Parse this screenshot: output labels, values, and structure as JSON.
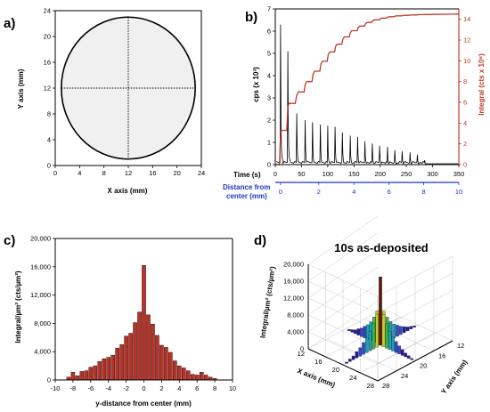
{
  "panels": {
    "a": "a)",
    "b": "b)",
    "c": "c)",
    "d": "d)"
  },
  "chart_data": [
    {
      "panel": "a",
      "type": "diagram",
      "xlabel": "X axis (mm)",
      "ylabel": "Y axis (mm)",
      "xlim": [
        0,
        24
      ],
      "ylim": [
        0,
        24
      ],
      "xticks": [
        0,
        4,
        8,
        12,
        16,
        20,
        24
      ],
      "yticks": [
        0,
        4,
        8,
        12,
        16,
        20,
        24
      ],
      "circle": {
        "cx": 12,
        "cy": 12,
        "r": 11,
        "fill": "#f0f0f0"
      },
      "crosshair": {
        "x": 12,
        "y": 12
      }
    },
    {
      "panel": "b",
      "type": "line",
      "xlabel": "Time (s)",
      "ylabel": "cps (x 10³)",
      "y2label": "Integral (cts x 10⁶)",
      "xlim": [
        0,
        350
      ],
      "ylim": [
        0,
        7
      ],
      "y2lim": [
        0,
        15
      ],
      "xticks": [
        0,
        50,
        100,
        150,
        200,
        250,
        300,
        350
      ],
      "yticks": [
        0,
        1,
        2,
        3,
        4,
        5,
        6,
        7
      ],
      "y2ticks": [
        0,
        2,
        4,
        6,
        8,
        10,
        12,
        14
      ],
      "secondary_axis": {
        "label_line1": "Distance from",
        "label_line2": "center (mm)",
        "ticks": [
          0,
          2,
          4,
          6,
          8,
          10
        ],
        "tick_times": [
          10,
          83,
          150,
          217,
          283,
          350
        ]
      },
      "series": [
        {
          "name": "cps",
          "color": "#000000",
          "peaks": [
            [
              10,
              6.3
            ],
            [
              24,
              5.1
            ],
            [
              41,
              2.3
            ],
            [
              57,
              2.0
            ],
            [
              71,
              1.9
            ],
            [
              86,
              1.8
            ],
            [
              100,
              1.75
            ],
            [
              114,
              1.7
            ],
            [
              128,
              1.45
            ],
            [
              143,
              1.3
            ],
            [
              157,
              1.25
            ],
            [
              171,
              1.05
            ],
            [
              185,
              0.95
            ],
            [
              199,
              0.85
            ],
            [
              214,
              0.8
            ],
            [
              228,
              0.65
            ],
            [
              242,
              0.6
            ],
            [
              257,
              0.55
            ],
            [
              271,
              0.45
            ],
            [
              285,
              0.2
            ]
          ]
        },
        {
          "name": "Integral",
          "color": "#c0392b",
          "x": [
            0,
            8,
            10,
            12,
            22,
            24,
            26,
            38,
            41,
            44,
            55,
            57,
            60,
            70,
            72,
            75,
            85,
            87,
            90,
            99,
            101,
            104,
            113,
            115,
            118,
            127,
            129,
            132,
            141,
            143,
            146,
            156,
            158,
            161,
            170,
            172,
            175,
            184,
            186,
            189,
            198,
            200,
            203,
            212,
            214,
            217,
            226,
            228,
            231,
            241,
            243,
            246,
            255,
            257,
            260,
            269,
            271,
            274,
            284,
            286,
            300,
            350
          ],
          "y": [
            0,
            0,
            2.9,
            3.3,
            3.3,
            5.5,
            5.9,
            5.9,
            6.7,
            7.0,
            7.0,
            7.7,
            8.0,
            8.0,
            8.7,
            9.0,
            9.0,
            9.7,
            9.95,
            9.95,
            10.6,
            10.85,
            10.85,
            11.4,
            11.6,
            11.6,
            12.1,
            12.3,
            12.3,
            12.7,
            12.9,
            12.9,
            13.2,
            13.35,
            13.35,
            13.55,
            13.7,
            13.7,
            13.85,
            13.95,
            13.95,
            14.05,
            14.12,
            14.12,
            14.2,
            14.25,
            14.25,
            14.3,
            14.33,
            14.33,
            14.36,
            14.38,
            14.38,
            14.4,
            14.42,
            14.42,
            14.43,
            14.45,
            14.45,
            14.46,
            14.47,
            14.5
          ]
        }
      ]
    },
    {
      "panel": "c",
      "type": "bar",
      "xlabel": "y-distance from center (mm)",
      "ylabel": "Integral/µm² (cts/µm²)",
      "xlim": [
        -10,
        10
      ],
      "ylim": [
        0,
        20000
      ],
      "xticks": [
        -10,
        -8,
        -6,
        -4,
        -2,
        0,
        2,
        4,
        6,
        8,
        10
      ],
      "yticks": [
        0,
        4000,
        8000,
        12000,
        16000,
        20000
      ],
      "ytick_labels": [
        "0",
        "4,000",
        "8,000",
        "12,000",
        "16,000",
        "20,000"
      ],
      "x": [
        -8.5,
        -8,
        -7.5,
        -7,
        -6.5,
        -6,
        -5.5,
        -5,
        -4.5,
        -4,
        -3.5,
        -3,
        -2.5,
        -2,
        -1.5,
        -1,
        -0.5,
        0,
        0.5,
        1,
        1.5,
        2,
        2.5,
        3,
        3.5,
        4,
        4.5,
        5,
        5.5,
        6,
        6.5,
        7,
        7.5,
        8
      ],
      "values": [
        400,
        1100,
        600,
        1200,
        1300,
        1800,
        2000,
        2600,
        3000,
        3200,
        3500,
        4500,
        5000,
        6200,
        6600,
        8100,
        9600,
        16200,
        9200,
        7900,
        6300,
        4900,
        4600,
        3900,
        2700,
        2000,
        1700,
        1300,
        800,
        700,
        1100,
        700,
        400,
        200
      ],
      "bar_color": "#b83228"
    },
    {
      "panel": "d",
      "type": "bar3d",
      "title": "10s as-deposited",
      "xlabel": "X axis (mm)",
      "ylabel": "Y axis (mm)",
      "zlabel": "Integral/µm² (cts/µm²)",
      "zlim": [
        0,
        20000
      ],
      "zticks": [
        0,
        4000,
        8000,
        12000,
        16000,
        20000
      ],
      "ztick_labels": [
        "0",
        "4,000",
        "8,000",
        "12,000",
        "16,000",
        "20,000"
      ],
      "xticks": [
        12,
        16,
        20,
        24,
        28
      ],
      "yticks": [
        12,
        16,
        20,
        24,
        28
      ],
      "profile": [
        300,
        600,
        900,
        1500,
        2000,
        2800,
        3500,
        4500,
        6000,
        7800,
        16200,
        7600,
        5800,
        4300,
        3300,
        2600,
        1900,
        1400,
        900,
        600,
        300
      ]
    }
  ]
}
